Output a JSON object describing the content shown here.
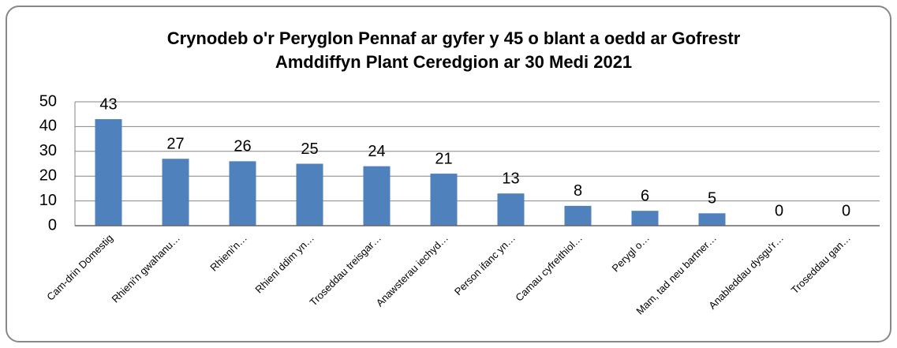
{
  "chart_data": {
    "type": "bar",
    "title": "Crynodeb o'r Peryglon Pennaf ar gyfer y 45 o blant a oedd ar Gofrestr Amddiffyn Plant Ceredgion ar 30 Medi 2021",
    "categories": [
      "Cam-drin Domestig",
      "Rhieni'n gwahanu…",
      "Rhieni'n…",
      "Rhieni ddim yn…",
      "Troseddau treisgar…",
      "Anawsterau iechyd…",
      "Person ifanc yn…",
      "Camau cyfreithiol…",
      "Perygl o…",
      "Mam, tad neu bartner…",
      "Anableddau dysgu'r…",
      "Troseddau gan…"
    ],
    "values": [
      43,
      27,
      26,
      25,
      24,
      21,
      13,
      8,
      6,
      5,
      0,
      0
    ],
    "color": "#4f81bd",
    "ylim": [
      0,
      50
    ],
    "yticks": [
      0,
      10,
      20,
      30,
      40,
      50
    ],
    "grid": true
  }
}
